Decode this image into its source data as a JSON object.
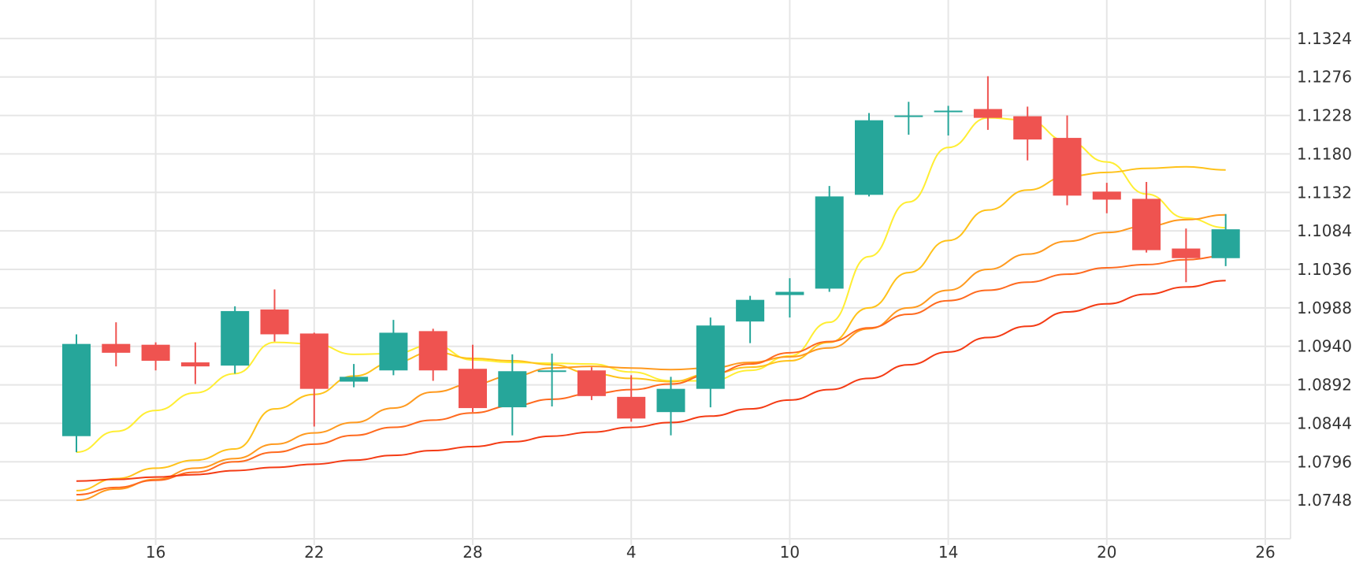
{
  "chart_data": {
    "type": "candlestick",
    "title": "",
    "xlabel": "",
    "ylabel": "",
    "grid": true,
    "y_axis_position": "right",
    "ylim": [
      1.07,
      1.1372
    ],
    "y_ticks": [
      "1.0748",
      "1.0796",
      "1.0844",
      "1.0892",
      "1.0940",
      "1.0988",
      "1.1036",
      "1.1084",
      "1.1132",
      "1.1180",
      "1.1228",
      "1.1276",
      "1.1324"
    ],
    "x_ticks": [
      {
        "label": "16",
        "index": 2
      },
      {
        "label": "22",
        "index": 6
      },
      {
        "label": "28",
        "index": 10
      },
      {
        "label": "4",
        "index": 14
      },
      {
        "label": "10",
        "index": 18
      },
      {
        "label": "14",
        "index": 22
      },
      {
        "label": "20",
        "index": 26
      },
      {
        "label": "26",
        "index": 30
      }
    ],
    "colors": {
      "up": "#26a69a",
      "down": "#ef5350",
      "grid": "#e6e6e6",
      "ma": [
        "#ffee33",
        "#ffc21a",
        "#ff9a1f",
        "#ff6a1f",
        "#f43b14"
      ]
    },
    "candles": [
      {
        "open": 1.0828,
        "high": 1.0955,
        "low": 1.0808,
        "close": 1.0943
      },
      {
        "open": 1.0943,
        "high": 1.097,
        "low": 1.0915,
        "close": 1.0932
      },
      {
        "open": 1.0942,
        "high": 1.0945,
        "low": 1.091,
        "close": 1.0922
      },
      {
        "open": 1.092,
        "high": 1.0945,
        "low": 1.0893,
        "close": 1.0915
      },
      {
        "open": 1.0916,
        "high": 1.099,
        "low": 1.0906,
        "close": 1.0984
      },
      {
        "open": 1.0986,
        "high": 1.1011,
        "low": 1.0946,
        "close": 1.0955
      },
      {
        "open": 1.0956,
        "high": 1.0957,
        "low": 1.084,
        "close": 1.0887
      },
      {
        "open": 1.0896,
        "high": 1.0918,
        "low": 1.0889,
        "close": 1.0902
      },
      {
        "open": 1.091,
        "high": 1.0973,
        "low": 1.0904,
        "close": 1.0957
      },
      {
        "open": 1.0959,
        "high": 1.0962,
        "low": 1.0897,
        "close": 1.091
      },
      {
        "open": 1.0912,
        "high": 1.0942,
        "low": 1.0858,
        "close": 1.0863
      },
      {
        "open": 1.0864,
        "high": 1.093,
        "low": 1.0829,
        "close": 1.0909
      },
      {
        "open": 1.091,
        "high": 1.0931,
        "low": 1.0865,
        "close": 1.091
      },
      {
        "open": 1.091,
        "high": 1.0914,
        "low": 1.0873,
        "close": 1.0878
      },
      {
        "open": 1.0877,
        "high": 1.0904,
        "low": 1.0846,
        "close": 1.085
      },
      {
        "open": 1.0858,
        "high": 1.0902,
        "low": 1.0829,
        "close": 1.0887
      },
      {
        "open": 1.0887,
        "high": 1.0976,
        "low": 1.0864,
        "close": 1.0966
      },
      {
        "open": 1.0971,
        "high": 1.1003,
        "low": 1.0944,
        "close": 1.0998
      },
      {
        "open": 1.1004,
        "high": 1.1025,
        "low": 1.0976,
        "close": 1.1008
      },
      {
        "open": 1.1012,
        "high": 1.114,
        "low": 1.1008,
        "close": 1.1127
      },
      {
        "open": 1.1129,
        "high": 1.1231,
        "low": 1.1127,
        "close": 1.1222
      },
      {
        "open": 1.1228,
        "high": 1.1245,
        "low": 1.1204,
        "close": 1.1228
      },
      {
        "open": 1.1234,
        "high": 1.124,
        "low": 1.1203,
        "close": 1.1234
      },
      {
        "open": 1.1236,
        "high": 1.1277,
        "low": 1.121,
        "close": 1.1225
      },
      {
        "open": 1.1227,
        "high": 1.1239,
        "low": 1.1172,
        "close": 1.1198
      },
      {
        "open": 1.12,
        "high": 1.1228,
        "low": 1.1116,
        "close": 1.1128
      },
      {
        "open": 1.1133,
        "high": 1.1144,
        "low": 1.1106,
        "close": 1.1123
      },
      {
        "open": 1.1124,
        "high": 1.1145,
        "low": 1.1057,
        "close": 1.106
      },
      {
        "open": 1.1062,
        "high": 1.1087,
        "low": 1.102,
        "close": 1.105
      },
      {
        "open": 1.105,
        "high": 1.1105,
        "low": 1.104,
        "close": 1.1086
      }
    ],
    "moving_averages": [
      {
        "values": [
          1.0808,
          1.0834,
          1.086,
          1.0882,
          1.0906,
          1.0945,
          1.0943,
          1.093,
          1.0931,
          1.0942,
          1.0923,
          1.092,
          1.0919,
          1.0918,
          1.0908,
          1.0897,
          1.0897,
          1.091,
          1.0928,
          1.097,
          1.1052,
          1.112,
          1.1188,
          1.1225,
          1.1222,
          1.1196,
          1.117,
          1.113,
          1.11,
          1.1088
        ]
      },
      {
        "values": [
          1.076,
          1.0775,
          1.0788,
          1.0798,
          1.0812,
          1.0862,
          1.088,
          1.0903,
          1.092,
          1.0933,
          1.0925,
          1.0922,
          1.0917,
          1.0906,
          1.09,
          1.0896,
          1.0906,
          1.0914,
          1.0922,
          1.0945,
          1.0988,
          1.1032,
          1.1072,
          1.111,
          1.1135,
          1.1152,
          1.1157,
          1.1162,
          1.1164,
          1.116
        ]
      },
      {
        "values": [
          1.0748,
          1.0762,
          1.0774,
          1.0788,
          1.08,
          1.0818,
          1.0832,
          1.0845,
          1.0863,
          1.0883,
          1.0893,
          1.0903,
          1.0913,
          1.0915,
          1.0913,
          1.0911,
          1.0913,
          1.092,
          1.0927,
          1.0938,
          1.0962,
          1.0988,
          1.101,
          1.1036,
          1.1055,
          1.1071,
          1.1082,
          1.109,
          1.1098,
          1.1104
        ]
      },
      {
        "values": [
          1.0755,
          1.0764,
          1.0773,
          1.0783,
          1.0796,
          1.0808,
          1.0818,
          1.0829,
          1.0839,
          1.0848,
          1.0857,
          1.0866,
          1.0874,
          1.0881,
          1.0886,
          1.0893,
          1.0905,
          1.0918,
          1.0932,
          1.0946,
          1.0963,
          1.098,
          1.0997,
          1.101,
          1.102,
          1.103,
          1.1038,
          1.1042,
          1.1048,
          1.1053
        ]
      },
      {
        "values": [
          1.0772,
          1.0774,
          1.0777,
          1.078,
          1.0785,
          1.0789,
          1.0793,
          1.0798,
          1.0804,
          1.081,
          1.0815,
          1.0821,
          1.0828,
          1.0833,
          1.0839,
          1.0845,
          1.0853,
          1.0862,
          1.0873,
          1.0886,
          1.09,
          1.0917,
          1.0933,
          1.0951,
          1.0965,
          1.0983,
          1.0993,
          1.1005,
          1.1014,
          1.1022
        ]
      }
    ]
  }
}
